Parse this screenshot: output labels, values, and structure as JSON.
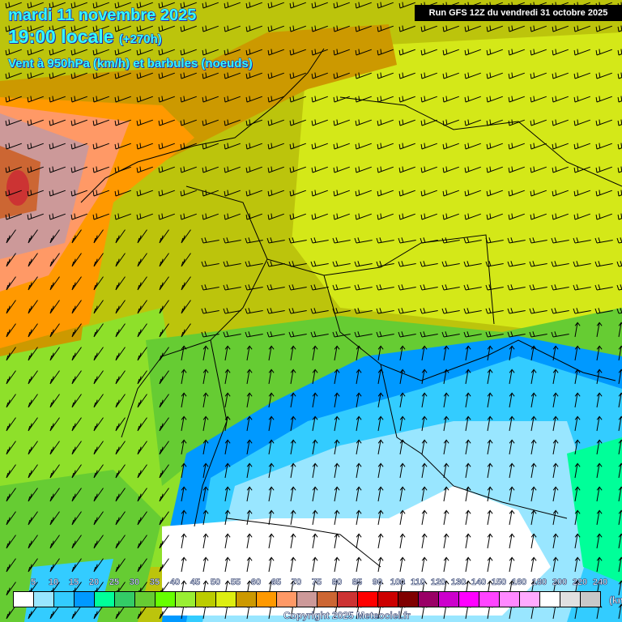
{
  "header": {
    "date": "mardi 11 novembre 2025",
    "time": "19:00 locale",
    "lead": "(+270h)",
    "parameter": "Vent à 950hPa (km/h) et barbules (noeuds)",
    "run": "Run GFS 12Z du vendredi 31 octobre 2025"
  },
  "legend": {
    "labels": [
      "5",
      "10",
      "15",
      "20",
      "25",
      "30",
      "35",
      "40",
      "45",
      "50",
      "55",
      "60",
      "65",
      "70",
      "75",
      "80",
      "85",
      "90",
      "100",
      "110",
      "120",
      "130",
      "140",
      "150",
      "160",
      "180",
      "200",
      "220",
      "240"
    ],
    "colors": [
      "#ffffff",
      "#99e6ff",
      "#33ccff",
      "#0099ff",
      "#00ff99",
      "#33cc66",
      "#66cc33",
      "#66ff00",
      "#99ee33",
      "#bbcc00",
      "#ddee11",
      "#cc9900",
      "#ff9900",
      "#ff9966",
      "#cc9999",
      "#cc6633",
      "#cc3333",
      "#ff0000",
      "#cc0000",
      "#800000",
      "#990066",
      "#cc00cc",
      "#ff00ff",
      "#ff44ff",
      "#ff88ff",
      "#ffaaff",
      "#ffffff",
      "#e0e0e0",
      "#c8c8c8"
    ],
    "unit": "(km/h)"
  },
  "copyright": "Copyright 2025 Meteociel.fr"
}
